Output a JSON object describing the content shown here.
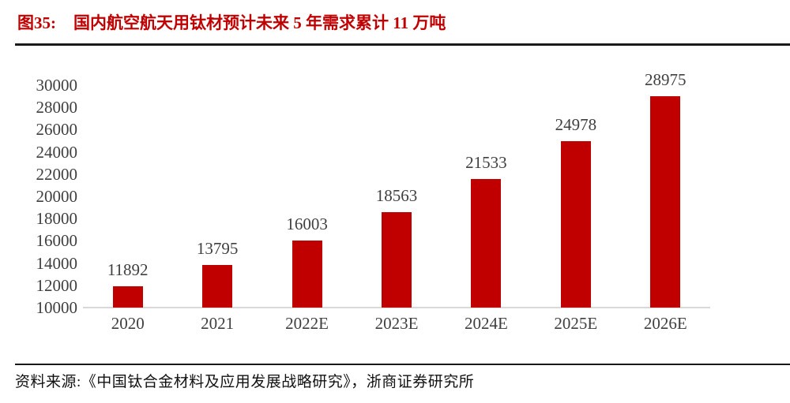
{
  "figure": {
    "label": "图35:",
    "title": "国内航空航天用钛材预计未来 5 年需求累计 11 万吨"
  },
  "source": {
    "text": "资料来源:《中国钛合金材料及应用发展战略研究》，浙商证券研究所"
  },
  "colors": {
    "bar": "#c00000",
    "title_text": "#c00000",
    "axis_text": "#3f3f3f",
    "label_text": "#3f3f3f",
    "baseline": "#d9d9d9",
    "rule": "#1a1a1a",
    "source_text": "#111111",
    "background": "#ffffff"
  },
  "chart_data": {
    "type": "bar",
    "categories": [
      "2020",
      "2021",
      "2022E",
      "2023E",
      "2024E",
      "2025E",
      "2026E"
    ],
    "values": [
      11892,
      13795,
      16003,
      18563,
      21533,
      24978,
      28975
    ],
    "title": "国内航空航天用钛材预计未来5年需求累计11万吨",
    "xlabel": "",
    "ylabel": "",
    "ylim": [
      10000,
      30000
    ],
    "ytick_step": 2000,
    "grid": false,
    "legend": "none",
    "data_labels": true,
    "bar_color": "#c00000"
  }
}
